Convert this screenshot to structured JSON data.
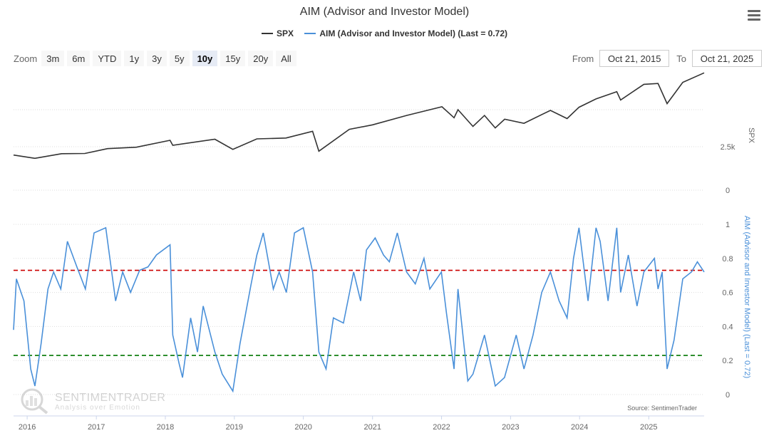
{
  "title": "AIM (Advisor and Investor Model)",
  "legend": [
    {
      "name": "SPX",
      "color": "#333333"
    },
    {
      "name": "AIM (Advisor and Investor Model) (Last = 0.72)",
      "color": "#4a90d9"
    }
  ],
  "zoom": {
    "label": "Zoom",
    "buttons": [
      "3m",
      "6m",
      "YTD",
      "1y",
      "3y",
      "5y",
      "10y",
      "15y",
      "20y",
      "All"
    ],
    "active": "10y"
  },
  "range": {
    "from_label": "From",
    "from_value": "Oct 21, 2015",
    "to_label": "To",
    "to_value": "Oct 21, 2025"
  },
  "watermark": {
    "brand": "SENTIMENTRADER",
    "tagline": "Analysis over Emotion"
  },
  "source": "Source: SentimenTrader",
  "chart_data": [
    {
      "type": "line",
      "series": [
        {
          "name": "SPX",
          "color": "#333333"
        }
      ],
      "ylabel": "SPX",
      "yticks": [
        {
          "v": 0,
          "label": "0"
        },
        {
          "v": 2500,
          "label": "2.5k"
        }
      ],
      "ylim": [
        0,
        7000
      ],
      "x": [
        "2015-10-21",
        "2016-02-11",
        "2016-07-01",
        "2016-11-01",
        "2017-03-01",
        "2017-08-01",
        "2018-01-26",
        "2018-02-09",
        "2018-09-20",
        "2018-12-24",
        "2019-04-30",
        "2019-10-01",
        "2020-02-19",
        "2020-03-23",
        "2020-08-31",
        "2021-01-01",
        "2021-06-30",
        "2022-01-03",
        "2022-03-08",
        "2022-03-29",
        "2022-06-16",
        "2022-08-16",
        "2022-10-12",
        "2022-12-01",
        "2023-03-13",
        "2023-07-31",
        "2023-10-27",
        "2023-12-29",
        "2024-03-28",
        "2024-07-16",
        "2024-08-05",
        "2024-12-06",
        "2025-02-19",
        "2025-04-08",
        "2025-06-30",
        "2025-10-21"
      ],
      "y": [
        2020,
        1830,
        2100,
        2110,
        2390,
        2470,
        2870,
        2580,
        2930,
        2350,
        2950,
        3000,
        3390,
        2240,
        3500,
        3760,
        4300,
        4800,
        4170,
        4630,
        3670,
        4300,
        3580,
        4080,
        3850,
        4590,
        4120,
        4770,
        5250,
        5670,
        5190,
        6090,
        6140,
        4980,
        6200,
        6750
      ]
    },
    {
      "type": "line",
      "series": [
        {
          "name": "AIM (Advisor and Investor Model) (Last = 0.72)",
          "color": "#4a90d9"
        }
      ],
      "ylabel": "AIM (Advisor and Investor Model) (Last = 0.72)",
      "yticks": [
        0,
        0.2,
        0.4,
        0.6,
        0.8,
        1
      ],
      "ylim": [
        0,
        1
      ],
      "thresholds": [
        {
          "value": 0.73,
          "color": "#cc0000"
        },
        {
          "value": 0.23,
          "color": "#007700"
        }
      ],
      "x": [
        "2015-10-21",
        "2015-11-05",
        "2015-12-15",
        "2016-01-20",
        "2016-02-11",
        "2016-03-15",
        "2016-04-20",
        "2016-05-20",
        "2016-06-27",
        "2016-08-01",
        "2016-09-20",
        "2016-11-04",
        "2016-12-20",
        "2017-02-20",
        "2017-04-13",
        "2017-05-20",
        "2017-07-01",
        "2017-08-18",
        "2017-10-01",
        "2017-11-15",
        "2018-01-26",
        "2018-02-09",
        "2018-03-15",
        "2018-04-02",
        "2018-05-15",
        "2018-06-20",
        "2018-07-20",
        "2018-09-20",
        "2018-10-29",
        "2018-12-24",
        "2019-01-31",
        "2019-03-31",
        "2019-04-30",
        "2019-06-03",
        "2019-07-26",
        "2019-08-26",
        "2019-10-03",
        "2019-11-15",
        "2020-01-01",
        "2020-02-19",
        "2020-03-23",
        "2020-04-30",
        "2020-06-08",
        "2020-07-31",
        "2020-09-23",
        "2020-10-30",
        "2020-11-30",
        "2021-01-15",
        "2021-02-28",
        "2021-03-31",
        "2021-05-12",
        "2021-06-30",
        "2021-08-15",
        "2021-09-30",
        "2021-10-31",
        "2021-12-31",
        "2022-01-27",
        "2022-03-08",
        "2022-03-29",
        "2022-05-20",
        "2022-06-16",
        "2022-08-16",
        "2022-10-12",
        "2022-11-30",
        "2023-01-31",
        "2023-03-13",
        "2023-04-30",
        "2023-06-15",
        "2023-07-31",
        "2023-09-15",
        "2023-10-27",
        "2023-11-30",
        "2023-12-29",
        "2024-02-15",
        "2024-03-28",
        "2024-04-19",
        "2024-05-31",
        "2024-07-16",
        "2024-08-05",
        "2024-09-15",
        "2024-10-31",
        "2024-12-06",
        "2025-01-31",
        "2025-02-19",
        "2025-03-13",
        "2025-04-08",
        "2025-05-15",
        "2025-06-30",
        "2025-08-15",
        "2025-09-15",
        "2025-10-21"
      ],
      "y": [
        0.38,
        0.68,
        0.55,
        0.15,
        0.05,
        0.3,
        0.62,
        0.72,
        0.62,
        0.9,
        0.75,
        0.62,
        0.95,
        0.98,
        0.55,
        0.72,
        0.6,
        0.73,
        0.75,
        0.82,
        0.88,
        0.35,
        0.18,
        0.1,
        0.45,
        0.25,
        0.52,
        0.25,
        0.12,
        0.02,
        0.3,
        0.65,
        0.82,
        0.95,
        0.62,
        0.72,
        0.6,
        0.95,
        0.98,
        0.72,
        0.25,
        0.15,
        0.45,
        0.42,
        0.72,
        0.55,
        0.85,
        0.92,
        0.82,
        0.78,
        0.95,
        0.72,
        0.65,
        0.8,
        0.62,
        0.72,
        0.48,
        0.15,
        0.62,
        0.08,
        0.12,
        0.35,
        0.05,
        0.1,
        0.35,
        0.15,
        0.35,
        0.6,
        0.72,
        0.55,
        0.45,
        0.8,
        0.98,
        0.55,
        0.98,
        0.9,
        0.55,
        0.98,
        0.6,
        0.82,
        0.52,
        0.72,
        0.8,
        0.62,
        0.72,
        0.15,
        0.32,
        0.68,
        0.72,
        0.78,
        0.72
      ]
    }
  ],
  "x_axis": {
    "ticks": [
      "2016",
      "2017",
      "2018",
      "2019",
      "2020",
      "2021",
      "2022",
      "2023",
      "2024",
      "2025"
    ]
  }
}
